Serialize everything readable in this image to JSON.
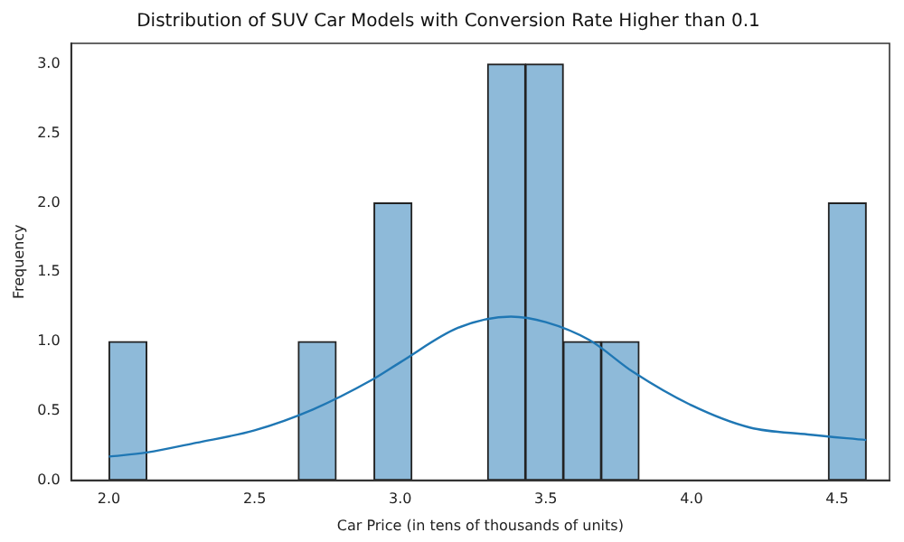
{
  "chart_data": {
    "type": "histogram",
    "title": "Distribution of SUV Car Models with Conversion Rate Higher than 0.1",
    "xlabel": "Car Price (in tens of thousands of units)",
    "ylabel": "Frequency",
    "bins": [
      2.0,
      2.13,
      2.26,
      2.39,
      2.52,
      2.65,
      2.78,
      2.91,
      3.04,
      3.17,
      3.3,
      3.43,
      3.56,
      3.69,
      3.82,
      3.95,
      4.08,
      4.21,
      4.34,
      4.47,
      4.6
    ],
    "values": [
      1,
      0,
      0,
      0,
      0,
      1,
      0,
      2,
      0,
      0,
      3,
      3,
      1,
      1,
      0,
      0,
      0,
      0,
      0,
      2
    ],
    "color": "#8ebad9",
    "series": [
      {
        "type": "line",
        "color": "#1f77b4",
        "x": [
          2.0,
          2.13,
          2.3,
          2.5,
          2.7,
          2.9,
          3.0,
          3.2,
          3.38,
          3.5,
          3.65,
          3.8,
          4.0,
          4.2,
          4.4,
          4.6
        ],
        "values": [
          0.17,
          0.2,
          0.27,
          0.36,
          0.51,
          0.72,
          0.85,
          1.1,
          1.18,
          1.14,
          1.01,
          0.78,
          0.54,
          0.38,
          0.33,
          0.29
        ]
      }
    ],
    "xlim": [
      1.87,
      4.68
    ],
    "ylim": [
      0,
      3.15
    ],
    "xticks": [
      {
        "value": 2,
        "label": "2.0"
      },
      {
        "value": 2.5,
        "label": "2.5"
      },
      {
        "value": 3,
        "label": "3.0"
      },
      {
        "value": 3.5,
        "label": "3.5"
      },
      {
        "value": 4,
        "label": "4.0"
      },
      {
        "value": 4.5,
        "label": "4.5"
      }
    ],
    "yticks": [
      {
        "value": 0,
        "label": "0.0"
      },
      {
        "value": 0.5,
        "label": "0.5"
      },
      {
        "value": 1,
        "label": "1.0"
      },
      {
        "value": 1.5,
        "label": "1.5"
      },
      {
        "value": 2,
        "label": "2.0"
      },
      {
        "value": 2.5,
        "label": "2.5"
      },
      {
        "value": 3,
        "label": "3.0"
      }
    ],
    "grid": false,
    "legend": false
  }
}
